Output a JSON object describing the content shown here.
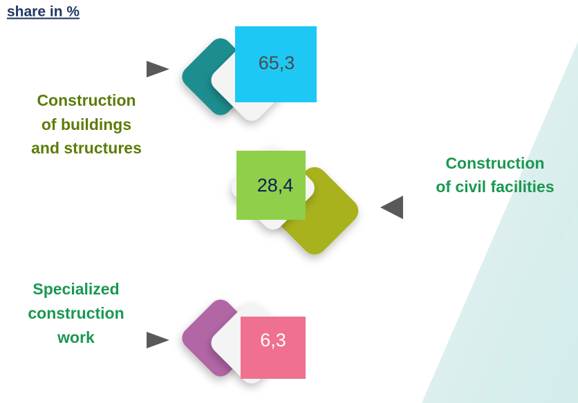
{
  "header": {
    "title": "share in %"
  },
  "items": [
    {
      "label_lines": [
        "Construction",
        "of buildings",
        "and structures"
      ],
      "value": "65,3"
    },
    {
      "label_lines": [
        "Construction",
        "of civil facilities"
      ],
      "value": "28,4"
    },
    {
      "label_lines": [
        "Specialized",
        "construction",
        "work"
      ],
      "value": "6,3"
    }
  ]
}
